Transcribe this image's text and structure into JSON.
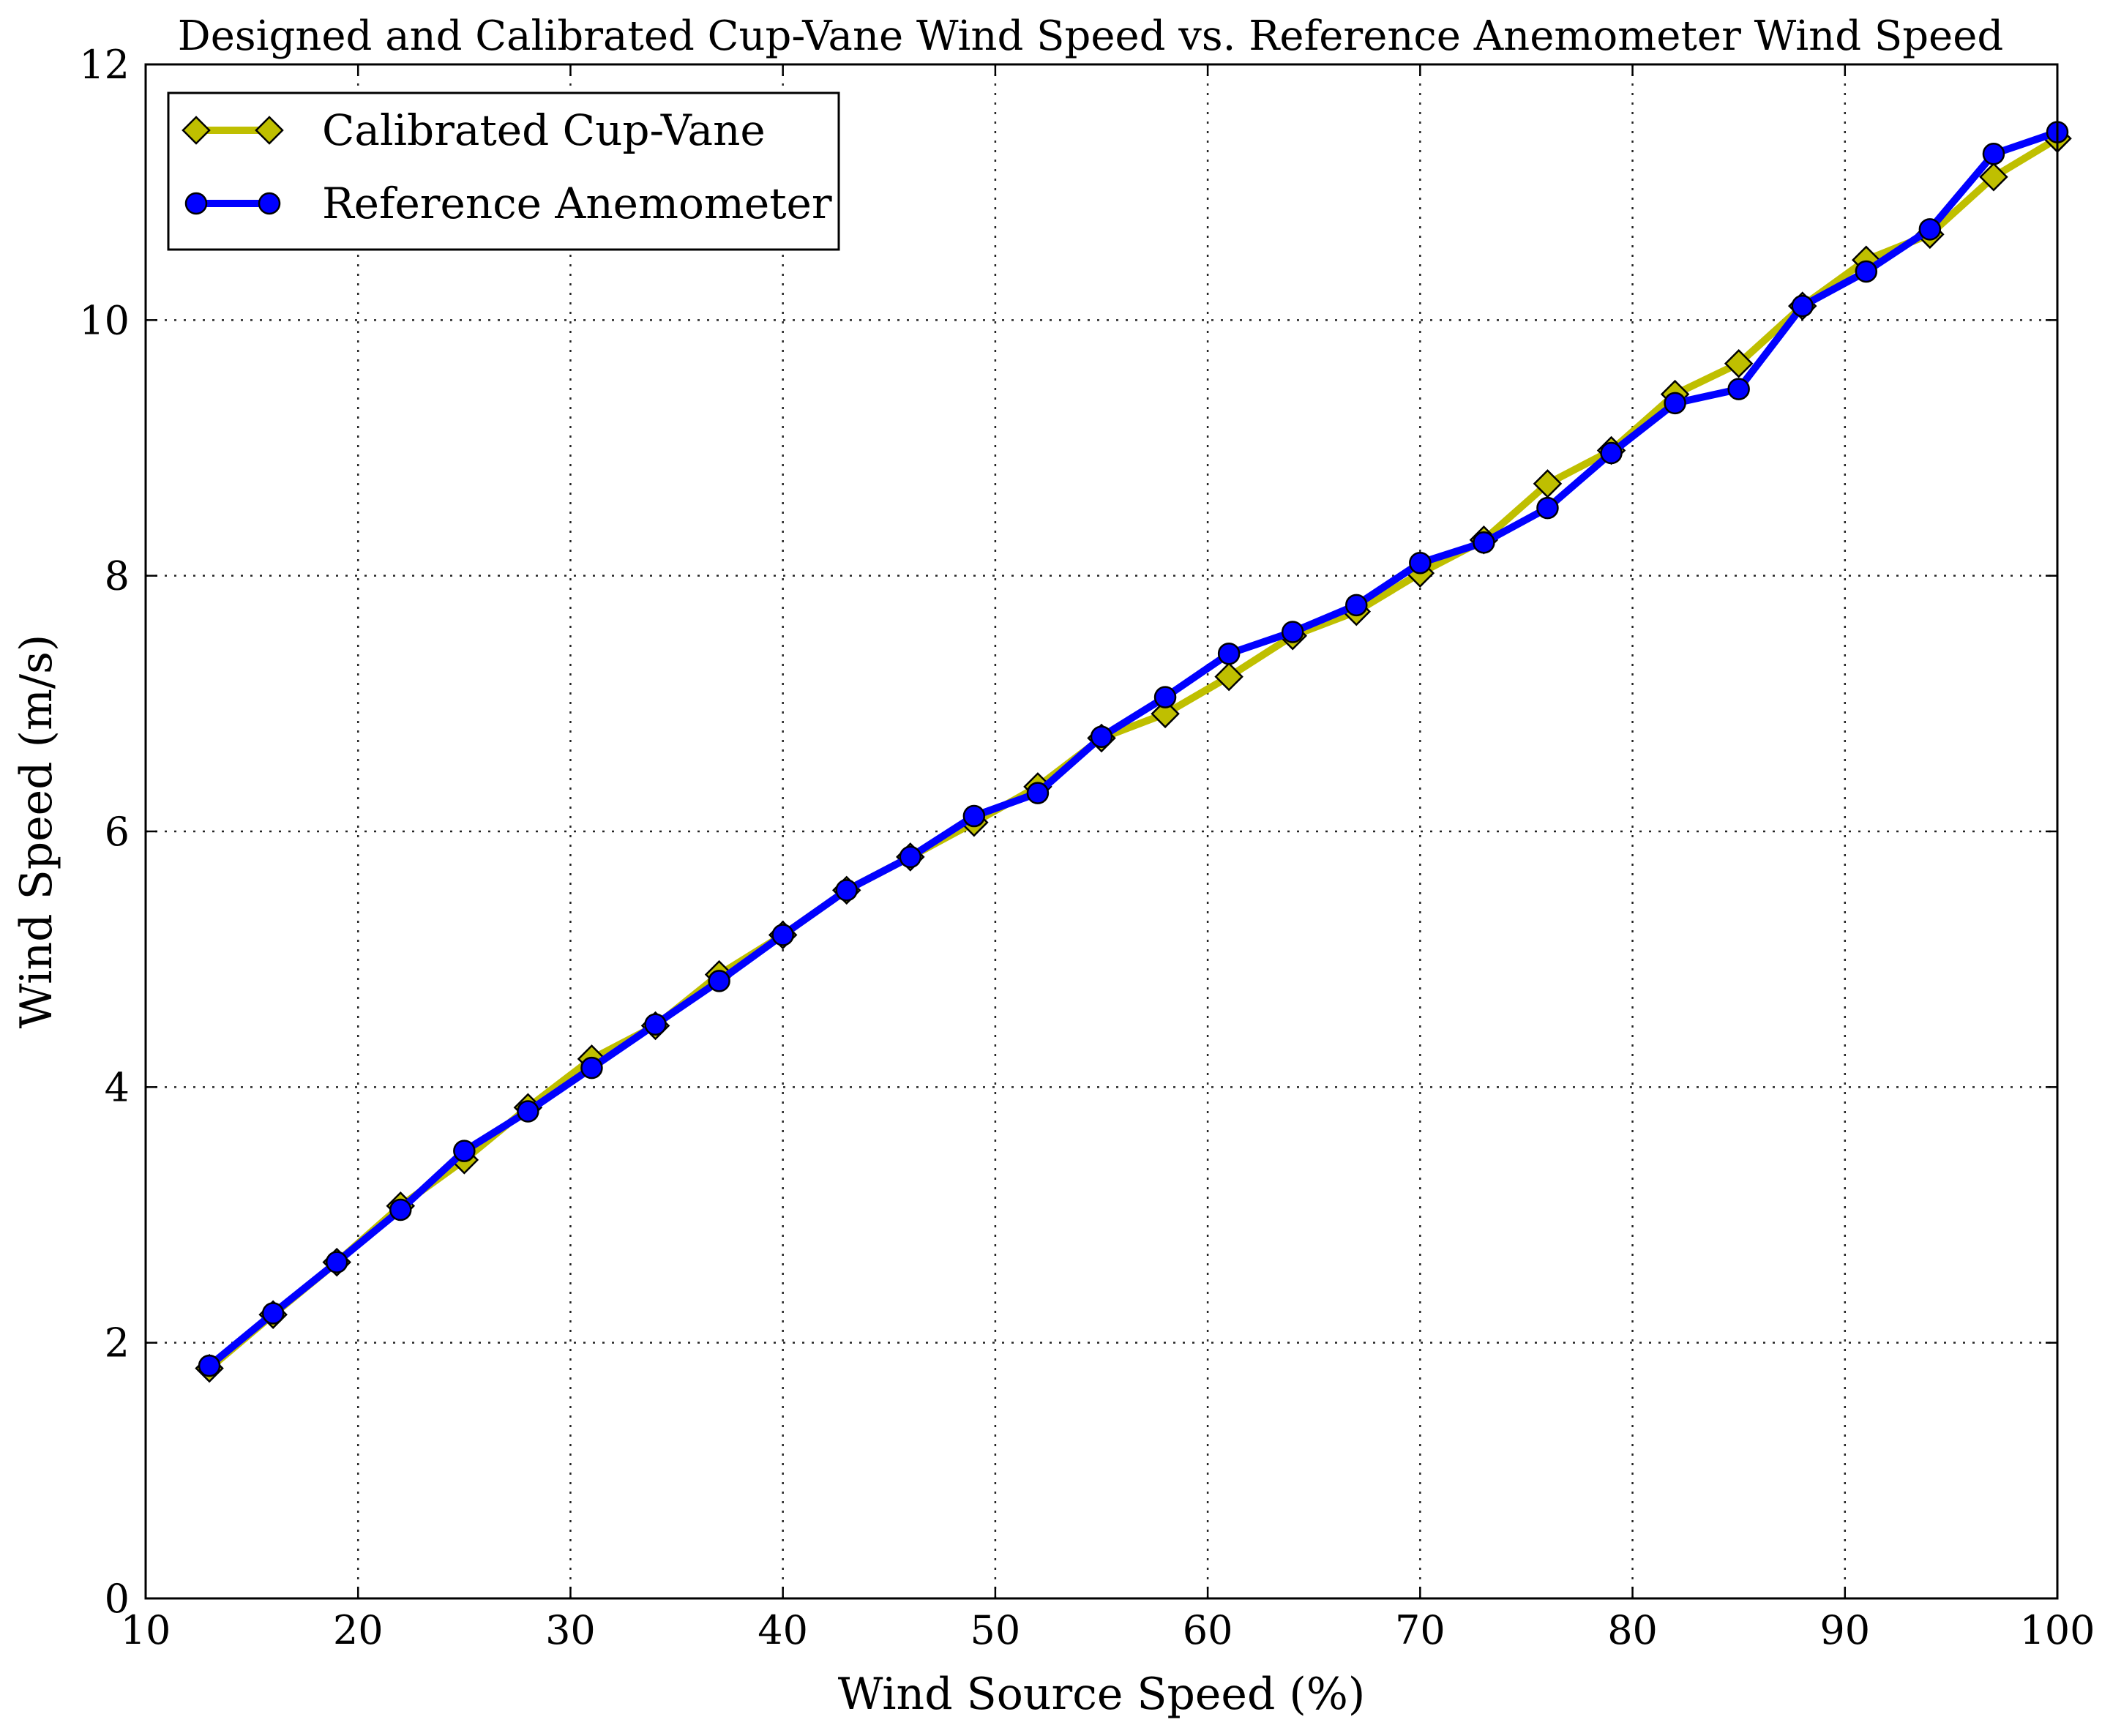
{
  "chart_data": {
    "type": "line",
    "title": "Designed and Calibrated Cup-Vane Wind Speed vs. Reference Anemometer Wind Speed",
    "xlabel": "Wind Source Speed (%)",
    "ylabel": "Wind Speed (m/s)",
    "xlim": [
      10,
      100
    ],
    "ylim": [
      0,
      12
    ],
    "xticks": [
      10,
      20,
      30,
      40,
      50,
      60,
      70,
      80,
      90,
      100
    ],
    "yticks": [
      0,
      2,
      4,
      6,
      8,
      10,
      12
    ],
    "xtick_labels": [
      "10",
      "20",
      "30",
      "40",
      "50",
      "60",
      "70",
      "80",
      "90",
      "100"
    ],
    "ytick_labels": [
      "0",
      "2",
      "4",
      "6",
      "8",
      "10",
      "12"
    ],
    "grid": true,
    "legend_position": "top-left",
    "x": [
      13,
      16,
      19,
      22,
      25,
      28,
      31,
      34,
      37,
      40,
      43,
      46,
      49,
      52,
      55,
      58,
      61,
      64,
      67,
      70,
      73,
      76,
      79,
      82,
      85,
      88,
      91,
      94,
      97,
      100
    ],
    "series": [
      {
        "name": "Calibrated Cup-Vane",
        "color": "#bfbf00",
        "marker": "diamond",
        "values": [
          1.8,
          2.22,
          2.63,
          3.07,
          3.43,
          3.84,
          4.22,
          4.48,
          4.88,
          5.19,
          5.54,
          5.8,
          6.07,
          6.35,
          6.73,
          6.92,
          7.21,
          7.53,
          7.72,
          8.02,
          8.28,
          8.72,
          8.98,
          9.42,
          9.66,
          10.11,
          10.47,
          10.67,
          11.12,
          11.42
        ]
      },
      {
        "name": "Reference Anemometer",
        "color": "#0000ff",
        "marker": "circle",
        "values": [
          1.82,
          2.23,
          2.63,
          3.04,
          3.5,
          3.81,
          4.15,
          4.49,
          4.83,
          5.19,
          5.54,
          5.8,
          6.12,
          6.3,
          6.74,
          7.05,
          7.39,
          7.56,
          7.77,
          8.1,
          8.26,
          8.53,
          8.96,
          9.35,
          9.46,
          10.11,
          10.38,
          10.71,
          11.3,
          11.47
        ]
      }
    ]
  }
}
